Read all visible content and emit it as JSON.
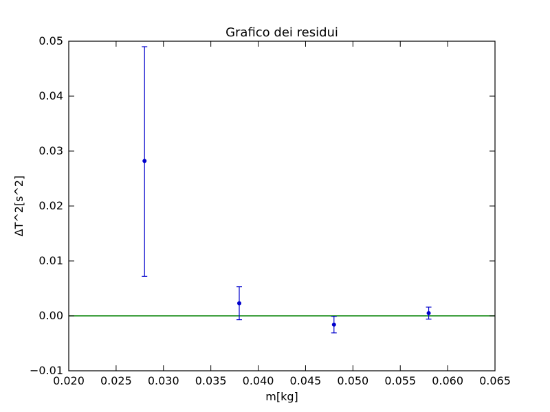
{
  "chart_data": {
    "type": "scatter",
    "title": "Grafico dei residui",
    "xlabel": "m[kg]",
    "ylabel": "ΔT^2[s^2]",
    "xlim": [
      0.02,
      0.065
    ],
    "ylim": [
      -0.01,
      0.05
    ],
    "xticks": [
      0.02,
      0.025,
      0.03,
      0.035,
      0.04,
      0.045,
      0.05,
      0.055,
      0.06,
      0.065
    ],
    "yticks": [
      -0.01,
      0.0,
      0.01,
      0.02,
      0.03,
      0.04,
      0.05
    ],
    "xtick_labels": [
      "0.020",
      "0.025",
      "0.030",
      "0.035",
      "0.040",
      "0.045",
      "0.050",
      "0.055",
      "0.060",
      "0.065"
    ],
    "ytick_labels": [
      "−0.01",
      "0.00",
      "0.01",
      "0.02",
      "0.03",
      "0.04",
      "0.05"
    ],
    "grid": false,
    "series": [
      {
        "points": [
          {
            "x": 0.028,
            "y": 0.0282,
            "yerr_low": 0.0072,
            "yerr_high": 0.049
          },
          {
            "x": 0.038,
            "y": 0.0023,
            "yerr_low": -0.0007,
            "yerr_high": 0.0053
          },
          {
            "x": 0.048,
            "y": -0.0016,
            "yerr_low": -0.0031,
            "yerr_high": -0.0001
          },
          {
            "x": 0.058,
            "y": 0.0005,
            "yerr_low": -0.0006,
            "yerr_high": 0.0016
          }
        ],
        "color": "#0000cc"
      }
    ],
    "reference_line": {
      "y": 0.0,
      "color": "#008000"
    }
  }
}
